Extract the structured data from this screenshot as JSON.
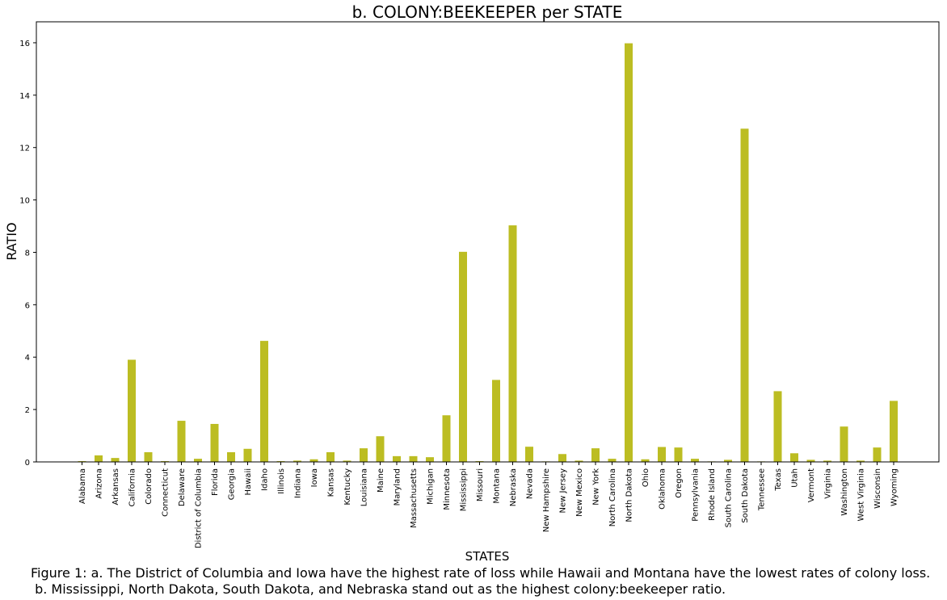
{
  "chart_data": {
    "type": "bar",
    "title": "b. COLONY:BEEKEEPER per STATE",
    "xlabel": "STATES",
    "ylabel": "RATIO",
    "ylim": [
      0,
      16.8
    ],
    "yticks": [
      0,
      2,
      4,
      6,
      8,
      10,
      12,
      14,
      16
    ],
    "grid": false,
    "bar_color": "#bcbd22",
    "categories": [
      "Alabama",
      "Arizona",
      "Arkansas",
      "California",
      "Colorado",
      "Connecticut",
      "Delaware",
      "District of Columbia",
      "Florida",
      "Georgia",
      "Hawaii",
      "Idaho",
      "Illinois",
      "Indiana",
      "Iowa",
      "Kansas",
      "Kentucky",
      "Louisiana",
      "Maine",
      "Maryland",
      "Massachusetts",
      "Michigan",
      "Minnesota",
      "Mississippi",
      "Missouri",
      "Montana",
      "Nebraska",
      "Nevada",
      "New Hampshire",
      "New Jersey",
      "New Mexico",
      "New York",
      "North Carolina",
      "North Dakota",
      "Ohio",
      "Oklahoma",
      "Oregon",
      "Pennsylvania",
      "Rhode Island",
      "South Carolina",
      "South Dakota",
      "Tennessee",
      "Texas",
      "Utah",
      "Vermont",
      "Virginia",
      "Washington",
      "West Virginia",
      "Wisconsin",
      "Wyoming"
    ],
    "values": [
      0.03,
      0.25,
      0.15,
      3.9,
      0.37,
      0.03,
      1.57,
      0.12,
      1.45,
      0.37,
      0.5,
      4.62,
      0.03,
      0.05,
      0.1,
      0.37,
      0.05,
      0.52,
      0.98,
      0.22,
      0.22,
      0.18,
      1.78,
      8.02,
      0.03,
      3.13,
      9.03,
      0.58,
      0.02,
      0.3,
      0.05,
      0.52,
      0.12,
      15.98,
      0.1,
      0.57,
      0.55,
      0.12,
      0.02,
      0.08,
      12.72,
      0.02,
      2.7,
      0.33,
      0.08,
      0.05,
      1.35,
      0.05,
      0.55,
      2.33
    ]
  },
  "caption": {
    "line1": "Figure 1: a. The District of Columbia and Iowa have the highest rate of loss while Hawaii and Montana have the lowest rates of colony loss.",
    "line2": " b. Mississippi, North Dakota, South Dakota, and Nebraska stand out as the highest colony:beekeeper ratio."
  }
}
